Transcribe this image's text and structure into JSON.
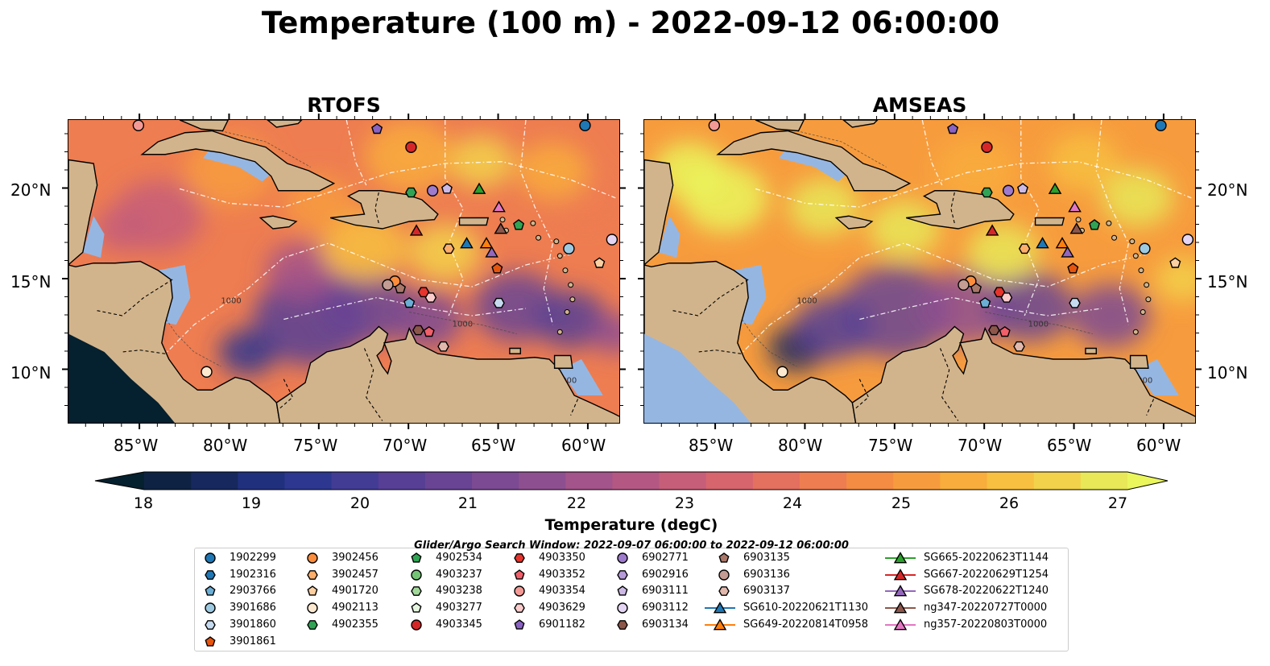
{
  "title": "Temperature (100 m) - 2022-09-12 06:00:00",
  "panels": [
    {
      "name": "rtofs",
      "title": "RTOFS"
    },
    {
      "name": "amseas",
      "title": "AMSEAS"
    }
  ],
  "lon_ticks": [
    "85°W",
    "80°W",
    "75°W",
    "70°W",
    "65°W",
    "60°W"
  ],
  "lat_ticks": [
    "20°N",
    "15°N",
    "10°N"
  ],
  "contour_labels": [
    "1000",
    "1000",
    "2000"
  ],
  "colorbar": {
    "label": "Temperature (degC)",
    "ticks": [
      "18",
      "19",
      "20",
      "21",
      "22",
      "23",
      "24",
      "25",
      "26",
      "27"
    ],
    "min": 18,
    "max": 27,
    "extend": "both",
    "colors": [
      "#05202f",
      "#0e2343",
      "#16285d",
      "#20307d",
      "#2d378f",
      "#423c95",
      "#563f95",
      "#694494",
      "#7b4a93",
      "#8e4f90",
      "#a3548a",
      "#b45883",
      "#c65e7a",
      "#d7656e",
      "#e47060",
      "#ee7d51",
      "#f48c44",
      "#f79c3e",
      "#f8ad3c",
      "#f7c041",
      "#f2d24b",
      "#e8e858",
      "#eaf65c"
    ]
  },
  "legend": {
    "title": "Glider/Argo Search Window: 2022-09-07 06:00:00 to 2022-09-12 06:00:00",
    "columns": [
      [
        {
          "label": "1902299",
          "marker": "circle",
          "color": "#1f77b4"
        },
        {
          "label": "1902316",
          "marker": "hexagon",
          "color": "#1f77b4"
        },
        {
          "label": "2903766",
          "marker": "pentagon",
          "color": "#6baed6"
        },
        {
          "label": "3901686",
          "marker": "circle",
          "color": "#9ecae1"
        },
        {
          "label": "3901860",
          "marker": "hexagon",
          "color": "#c6dbef"
        },
        {
          "label": "3901861",
          "marker": "pentagon",
          "color": "#e6550d"
        }
      ],
      [
        {
          "label": "3902456",
          "marker": "circle",
          "color": "#fd8d3c"
        },
        {
          "label": "3902457",
          "marker": "hexagon",
          "color": "#fdae6b"
        },
        {
          "label": "4901720",
          "marker": "pentagon",
          "color": "#fdd0a2"
        },
        {
          "label": "4902113",
          "marker": "circle",
          "color": "#fde9d0"
        },
        {
          "label": "4902355",
          "marker": "hexagon",
          "color": "#31a354"
        }
      ],
      [
        {
          "label": "4902534",
          "marker": "pentagon",
          "color": "#31a354"
        },
        {
          "label": "4903237",
          "marker": "circle",
          "color": "#74c476"
        },
        {
          "label": "4903238",
          "marker": "hexagon",
          "color": "#a1d99b"
        },
        {
          "label": "4903277",
          "marker": "pentagon",
          "color": "#e5f5e0"
        },
        {
          "label": "4903345",
          "marker": "circle",
          "color": "#d62728"
        }
      ],
      [
        {
          "label": "4903350",
          "marker": "hexagon",
          "color": "#e6342c"
        },
        {
          "label": "4903352",
          "marker": "pentagon",
          "color": "#f0606a"
        },
        {
          "label": "4903354",
          "marker": "circle",
          "color": "#f39a96"
        },
        {
          "label": "4903629",
          "marker": "hexagon",
          "color": "#fbcccc"
        },
        {
          "label": "6901182",
          "marker": "pentagon",
          "color": "#8a62c2"
        }
      ],
      [
        {
          "label": "6902771",
          "marker": "circle",
          "color": "#9e7bcc"
        },
        {
          "label": "6902916",
          "marker": "hexagon",
          "color": "#b69ad8"
        },
        {
          "label": "6903111",
          "marker": "pentagon",
          "color": "#cdb9e6"
        },
        {
          "label": "6903112",
          "marker": "circle",
          "color": "#e3d5f3"
        },
        {
          "label": "6903134",
          "marker": "hexagon",
          "color": "#8c564b"
        }
      ],
      [
        {
          "label": "6903135",
          "marker": "pentagon",
          "color": "#a9776a"
        },
        {
          "label": "6903136",
          "marker": "circle",
          "color": "#c49c94"
        },
        {
          "label": "6903137",
          "marker": "hexagon",
          "color": "#e2b8ad"
        },
        {
          "label": "SG610-20220621T1130",
          "marker": "triangle-line",
          "color": "#1f77b4"
        },
        {
          "label": "SG649-20220814T0958",
          "marker": "triangle-line",
          "color": "#ff7f0e"
        }
      ],
      [
        {
          "label": "SG665-20220623T1144",
          "marker": "triangle-line",
          "color": "#2ca02c"
        },
        {
          "label": "SG667-20220629T1254",
          "marker": "triangle-line",
          "color": "#d62728"
        },
        {
          "label": "SG678-20220622T1240",
          "marker": "triangle-line",
          "color": "#9467bd"
        },
        {
          "label": "ng347-20220727T0000",
          "marker": "triangle-line",
          "color": "#8c564b"
        },
        {
          "label": "ng357-20220803T0000",
          "marker": "triangle-line",
          "color": "#e377c2"
        }
      ]
    ]
  },
  "observations": [
    {
      "label": "1902299",
      "lon": -60.2,
      "lat": 23.5
    },
    {
      "label": "4903354",
      "lon": -85.1,
      "lat": 23.5
    },
    {
      "label": "6901182",
      "lon": -71.8,
      "lat": 23.3
    },
    {
      "label": "4903345",
      "lon": -69.9,
      "lat": 22.3
    },
    {
      "label": "4902355",
      "lon": -69.9,
      "lat": 19.8
    },
    {
      "label": "6902771",
      "lon": -68.7,
      "lat": 19.9
    },
    {
      "label": "6903111",
      "lon": -67.9,
      "lat": 20.0
    },
    {
      "label": "SG665-20220623T1144",
      "lon": -66.1,
      "lat": 20.0
    },
    {
      "label": "ng357-20220803T0000",
      "lon": -65.0,
      "lat": 19.0
    },
    {
      "label": "4902534",
      "lon": -63.9,
      "lat": 18.0
    },
    {
      "label": "ng347-20220727T0000",
      "lon": -64.9,
      "lat": 17.8
    },
    {
      "label": "SG667-20220629T1254",
      "lon": -69.6,
      "lat": 17.7
    },
    {
      "label": "3902457",
      "lon": -67.8,
      "lat": 16.7
    },
    {
      "label": "SG610-20220621T1130",
      "lon": -66.8,
      "lat": 17.0
    },
    {
      "label": "SG649-20220814T0958",
      "lon": -65.7,
      "lat": 17.0
    },
    {
      "label": "SG678-20220622T1240",
      "lon": -65.4,
      "lat": 16.5
    },
    {
      "label": "3901861",
      "lon": -65.1,
      "lat": 15.6
    },
    {
      "label": "3901686",
      "lon": -61.1,
      "lat": 16.7
    },
    {
      "label": "6903112",
      "lon": -58.7,
      "lat": 17.2
    },
    {
      "label": "4901720",
      "lon": -59.4,
      "lat": 15.9
    },
    {
      "label": "3902456",
      "lon": -70.8,
      "lat": 14.9
    },
    {
      "label": "6903136",
      "lon": -71.2,
      "lat": 14.7
    },
    {
      "label": "6903135",
      "lon": -70.5,
      "lat": 14.5
    },
    {
      "label": "4903350",
      "lon": -69.2,
      "lat": 14.3
    },
    {
      "label": "4903629",
      "lon": -68.8,
      "lat": 14.0
    },
    {
      "label": "2903766",
      "lon": -70.0,
      "lat": 13.7
    },
    {
      "label": "3901860",
      "lon": -65.0,
      "lat": 13.7
    },
    {
      "label": "6903134",
      "lon": -69.5,
      "lat": 12.2
    },
    {
      "label": "4903352",
      "lon": -68.9,
      "lat": 12.1
    },
    {
      "label": "6903137",
      "lon": -68.1,
      "lat": 11.3
    },
    {
      "label": "4902113",
      "lon": -81.3,
      "lat": 9.9
    }
  ]
}
